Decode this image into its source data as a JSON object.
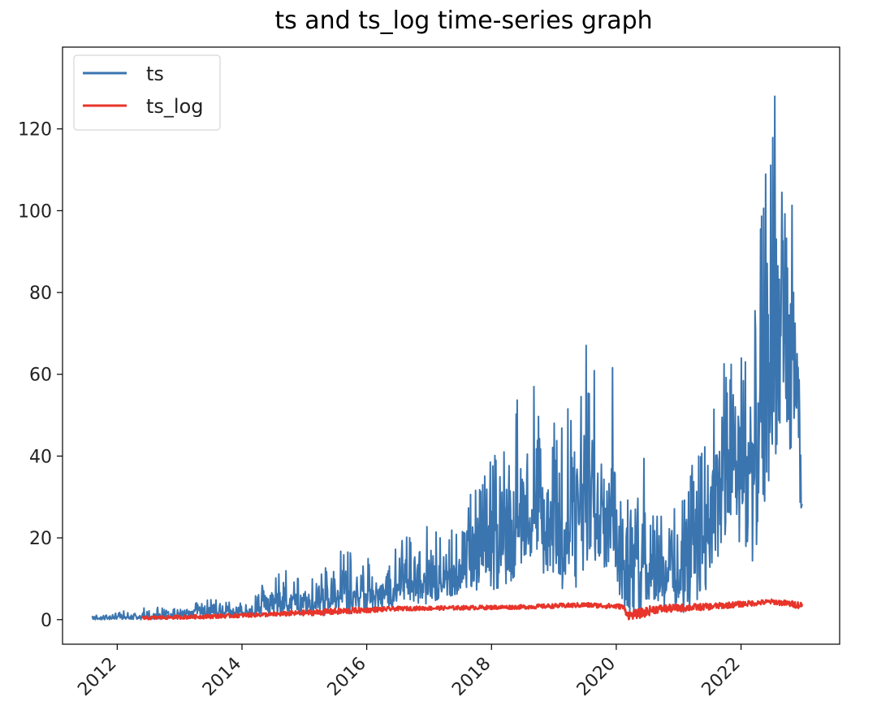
{
  "chart_data": {
    "type": "line",
    "title": "ts and ts_log time-series graph",
    "xlabel": "",
    "ylabel": "",
    "x_range": [
      "2011-08-01",
      "2023-01-01"
    ],
    "xlim": [
      "2011-02-15",
      "2023-08-01"
    ],
    "ylim": [
      -6,
      140
    ],
    "x_ticks": [
      "2012",
      "2014",
      "2016",
      "2018",
      "2020",
      "2022"
    ],
    "y_ticks": [
      0,
      20,
      40,
      60,
      80,
      100,
      120
    ],
    "grid": false,
    "legend": "top-left",
    "series": [
      {
        "name": "ts",
        "color": "#3b75af",
        "envelope_low": [
          [
            2011.6,
            0
          ],
          [
            2012.5,
            0
          ],
          [
            2013.5,
            0.5
          ],
          [
            2014.5,
            1
          ],
          [
            2015.5,
            1
          ],
          [
            2016.5,
            3
          ],
          [
            2017.0,
            4
          ],
          [
            2017.5,
            6
          ],
          [
            2018.0,
            7
          ],
          [
            2018.3,
            9
          ],
          [
            2018.6,
            16
          ],
          [
            2019.0,
            8
          ],
          [
            2019.3,
            5
          ],
          [
            2019.6,
            15
          ],
          [
            2019.9,
            12
          ],
          [
            2020.15,
            2
          ],
          [
            2020.3,
            1
          ],
          [
            2020.6,
            5
          ],
          [
            2020.9,
            2
          ],
          [
            2021.3,
            1
          ],
          [
            2021.6,
            15
          ],
          [
            2021.9,
            20
          ],
          [
            2022.2,
            14
          ],
          [
            2022.5,
            38
          ],
          [
            2022.7,
            46
          ],
          [
            2022.9,
            36
          ],
          [
            2022.98,
            15
          ]
        ],
        "envelope_high": [
          [
            2011.6,
            1
          ],
          [
            2012.5,
            3
          ],
          [
            2013.0,
            3
          ],
          [
            2013.5,
            5
          ],
          [
            2014.0,
            4
          ],
          [
            2014.3,
            8
          ],
          [
            2014.6,
            13
          ],
          [
            2015.0,
            9
          ],
          [
            2015.3,
            12
          ],
          [
            2015.6,
            17
          ],
          [
            2016.0,
            15
          ],
          [
            2016.3,
            14
          ],
          [
            2016.6,
            20
          ],
          [
            2017.0,
            23
          ],
          [
            2017.3,
            20
          ],
          [
            2017.6,
            29
          ],
          [
            2018.0,
            39
          ],
          [
            2018.3,
            48
          ],
          [
            2018.6,
            65
          ],
          [
            2018.8,
            45
          ],
          [
            2019.0,
            64
          ],
          [
            2019.2,
            50
          ],
          [
            2019.5,
            69
          ],
          [
            2019.7,
            58
          ],
          [
            2019.9,
            70
          ],
          [
            2020.1,
            28
          ],
          [
            2020.4,
            45
          ],
          [
            2020.6,
            34
          ],
          [
            2020.9,
            29
          ],
          [
            2021.3,
            40
          ],
          [
            2021.6,
            60
          ],
          [
            2021.9,
            66
          ],
          [
            2022.2,
            70
          ],
          [
            2022.4,
            116
          ],
          [
            2022.6,
            133
          ],
          [
            2022.75,
            117
          ],
          [
            2022.9,
            112
          ],
          [
            2022.98,
            30
          ]
        ]
      },
      {
        "name": "ts_log",
        "color": "#e8342a",
        "envelope_low": [
          [
            2012.4,
            0
          ],
          [
            2013.5,
            0.3
          ],
          [
            2014.5,
            0.8
          ],
          [
            2015.5,
            1.2
          ],
          [
            2016.5,
            2.2
          ],
          [
            2017.5,
            2.4
          ],
          [
            2018.5,
            2.6
          ],
          [
            2019.5,
            3
          ],
          [
            2020.1,
            2.6
          ],
          [
            2020.2,
            0
          ],
          [
            2020.45,
            0.5
          ],
          [
            2020.6,
            1.5
          ],
          [
            2021.5,
            2.4
          ],
          [
            2022.5,
            3.8
          ],
          [
            2022.98,
            2.6
          ]
        ],
        "envelope_high": [
          [
            2012.4,
            0.8
          ],
          [
            2013.5,
            1.3
          ],
          [
            2014.5,
            1.8
          ],
          [
            2015.5,
            2.8
          ],
          [
            2016.5,
            3.2
          ],
          [
            2017.5,
            3.4
          ],
          [
            2018.5,
            3.6
          ],
          [
            2019.5,
            4.2
          ],
          [
            2020.1,
            3.8
          ],
          [
            2020.2,
            2
          ],
          [
            2020.45,
            3
          ],
          [
            2020.6,
            3.6
          ],
          [
            2021.5,
            4
          ],
          [
            2022.5,
            5
          ],
          [
            2022.98,
            4.4
          ]
        ]
      }
    ]
  }
}
